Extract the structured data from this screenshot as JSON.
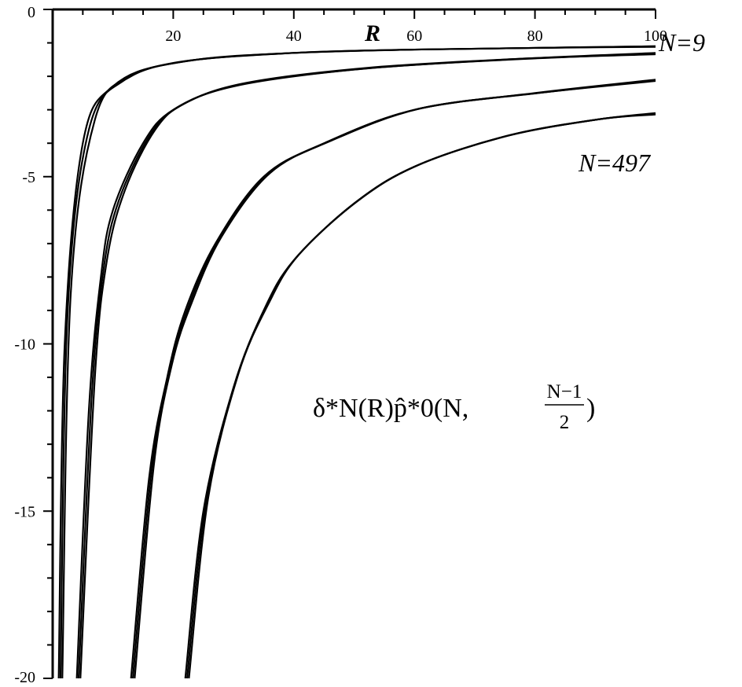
{
  "chart_data": {
    "type": "line",
    "title": "",
    "xlabel": "R",
    "ylabel": "",
    "xlim": [
      0,
      100
    ],
    "ylim": [
      -20,
      0
    ],
    "x_ticks": [
      20,
      40,
      60,
      80,
      100
    ],
    "x_tick_labels": [
      "20",
      "40",
      "60",
      "80",
      "100"
    ],
    "y_ticks": [
      0,
      -5,
      -10,
      -15,
      -20
    ],
    "y_tick_labels": [
      "0",
      "-5",
      "-10",
      "-15",
      "-20"
    ],
    "grid": false,
    "formula": {
      "main": "δ*N(R)p̂*0(N, ",
      "frac_num": "N−1",
      "frac_den": "2",
      "close": ")"
    },
    "annotations": [
      "N=9",
      "N=497"
    ],
    "series": [
      {
        "curve": 1,
        "points": [
          [
            1.0,
            -20
          ],
          [
            2.0,
            -10
          ],
          [
            5.0,
            -4
          ],
          [
            10,
            -2.3
          ],
          [
            20,
            -1.6
          ],
          [
            40,
            -1.3
          ],
          [
            60,
            -1.2
          ],
          [
            80,
            -1.15
          ],
          [
            100,
            -1.1
          ]
        ]
      },
      {
        "curve": 1,
        "points": [
          [
            1.3,
            -20
          ],
          [
            2.5,
            -9
          ],
          [
            6.0,
            -3.6
          ],
          [
            12,
            -2.1
          ],
          [
            22,
            -1.55
          ],
          [
            40,
            -1.3
          ],
          [
            60,
            -1.2
          ],
          [
            80,
            -1.15
          ],
          [
            100,
            -1.1
          ]
        ]
      },
      {
        "curve": 1,
        "points": [
          [
            1.6,
            -20
          ],
          [
            3.0,
            -8.5
          ],
          [
            7.0,
            -3.3
          ],
          [
            13,
            -2.0
          ],
          [
            24,
            -1.5
          ],
          [
            40,
            -1.3
          ],
          [
            60,
            -1.2
          ],
          [
            80,
            -1.15
          ],
          [
            100,
            -1.12
          ]
        ]
      },
      {
        "curve": 2,
        "points": [
          [
            4.0,
            -20
          ],
          [
            6.0,
            -12
          ],
          [
            8.0,
            -8
          ],
          [
            10,
            -6
          ],
          [
            15,
            -4
          ],
          [
            20,
            -3
          ],
          [
            30,
            -2.3
          ],
          [
            50,
            -1.8
          ],
          [
            75,
            -1.5
          ],
          [
            100,
            -1.3
          ]
        ]
      },
      {
        "curve": 2,
        "points": [
          [
            4.3,
            -20
          ],
          [
            6.5,
            -11.5
          ],
          [
            8.5,
            -7.7
          ],
          [
            11,
            -5.7
          ],
          [
            16,
            -3.8
          ],
          [
            21,
            -2.9
          ],
          [
            31,
            -2.25
          ],
          [
            51,
            -1.78
          ],
          [
            76,
            -1.5
          ],
          [
            100,
            -1.32
          ]
        ]
      },
      {
        "curve": 2,
        "points": [
          [
            4.6,
            -20
          ],
          [
            7.0,
            -11
          ],
          [
            9.0,
            -7.5
          ],
          [
            12,
            -5.4
          ],
          [
            17,
            -3.6
          ],
          [
            22,
            -2.8
          ],
          [
            32,
            -2.2
          ],
          [
            52,
            -1.75
          ],
          [
            77,
            -1.48
          ],
          [
            100,
            -1.34
          ]
        ]
      },
      {
        "curve": 3,
        "points": [
          [
            13,
            -20
          ],
          [
            16,
            -14
          ],
          [
            19,
            -11
          ],
          [
            22,
            -9
          ],
          [
            27,
            -7
          ],
          [
            35,
            -5
          ],
          [
            45,
            -4
          ],
          [
            60,
            -3
          ],
          [
            80,
            -2.5
          ],
          [
            100,
            -2.1
          ]
        ]
      },
      {
        "curve": 3,
        "points": [
          [
            13.3,
            -20
          ],
          [
            16.4,
            -13.8
          ],
          [
            19.4,
            -10.8
          ],
          [
            22.5,
            -8.9
          ],
          [
            27.5,
            -6.9
          ],
          [
            35.5,
            -4.95
          ],
          [
            45.5,
            -3.97
          ],
          [
            60.5,
            -2.98
          ],
          [
            80.5,
            -2.5
          ],
          [
            100,
            -2.12
          ]
        ]
      },
      {
        "curve": 3,
        "points": [
          [
            13.6,
            -20
          ],
          [
            16.8,
            -13.6
          ],
          [
            19.8,
            -10.6
          ],
          [
            23,
            -8.8
          ],
          [
            28,
            -6.8
          ],
          [
            36,
            -4.9
          ],
          [
            46,
            -3.94
          ],
          [
            61,
            -2.96
          ],
          [
            81,
            -2.49
          ],
          [
            100,
            -2.14
          ]
        ]
      },
      {
        "curve": 4,
        "points": [
          [
            22,
            -20
          ],
          [
            25,
            -15
          ],
          [
            30,
            -11.3
          ],
          [
            35,
            -9
          ],
          [
            40,
            -7.5
          ],
          [
            50,
            -5.8
          ],
          [
            60,
            -4.7
          ],
          [
            75,
            -3.8
          ],
          [
            90,
            -3.3
          ],
          [
            100,
            -3.1
          ]
        ]
      },
      {
        "curve": 4,
        "points": [
          [
            22.3,
            -20
          ],
          [
            25.4,
            -14.8
          ],
          [
            30.4,
            -11.1
          ],
          [
            35.4,
            -8.9
          ],
          [
            40.4,
            -7.42
          ],
          [
            50.4,
            -5.75
          ],
          [
            60.4,
            -4.67
          ],
          [
            75.4,
            -3.78
          ],
          [
            90.4,
            -3.29
          ],
          [
            100,
            -3.12
          ]
        ]
      },
      {
        "curve": 4,
        "points": [
          [
            22.6,
            -20
          ],
          [
            25.8,
            -14.6
          ],
          [
            30.8,
            -10.9
          ],
          [
            35.8,
            -8.8
          ],
          [
            40.8,
            -7.34
          ],
          [
            50.8,
            -5.7
          ],
          [
            60.8,
            -4.64
          ],
          [
            75.8,
            -3.76
          ],
          [
            90.8,
            -3.28
          ],
          [
            100,
            -3.14
          ]
        ]
      }
    ]
  }
}
